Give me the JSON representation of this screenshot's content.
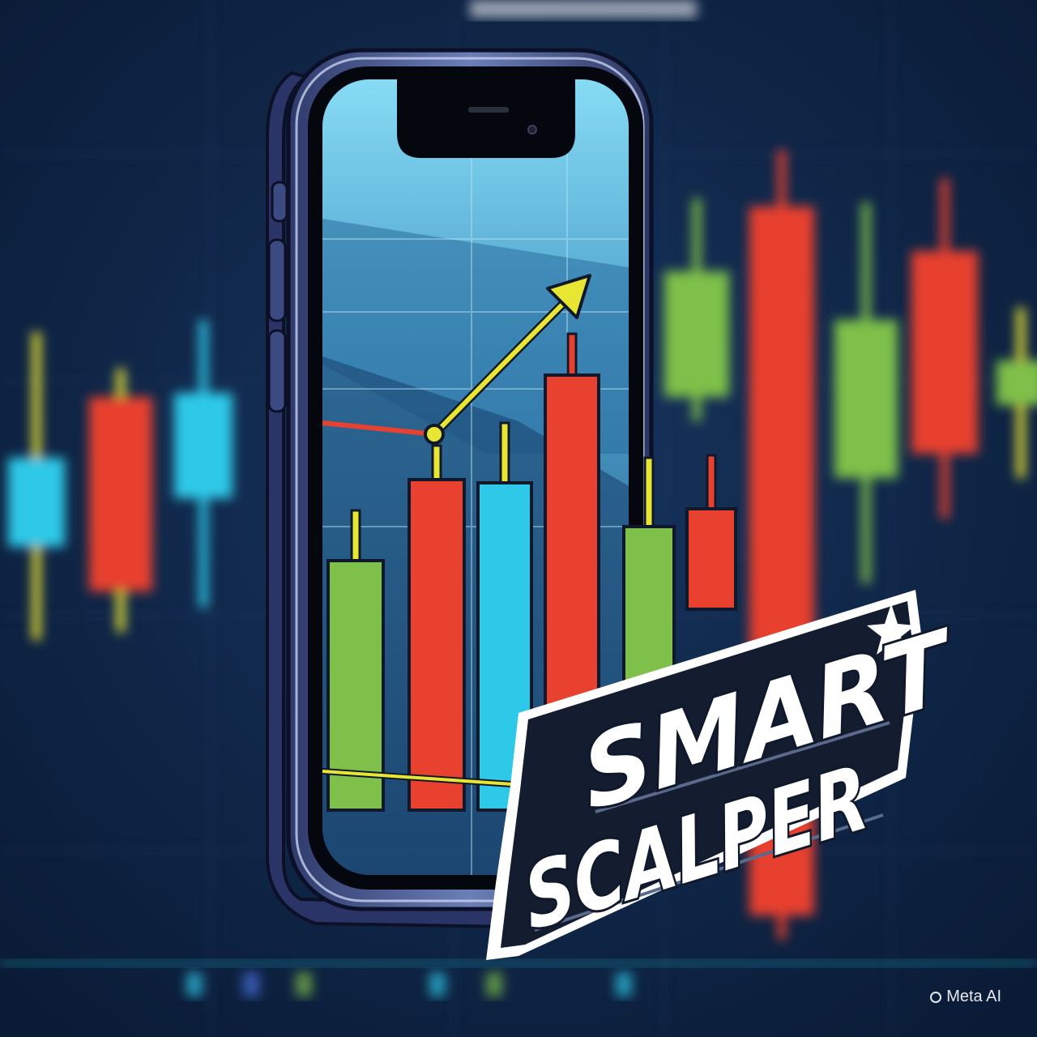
{
  "logo": {
    "line1": "SMART",
    "line2": "SCALPER"
  },
  "watermark": {
    "icon": "meta-ai-ring-icon",
    "text": "Meta AI"
  },
  "colors": {
    "background": "#0e2445",
    "green": "#7ec04a",
    "red": "#e8412f",
    "cyan": "#2ec9e8",
    "yellow": "#e9e533",
    "screen_top": "#7fd3ef",
    "screen_bottom": "#1f4d78",
    "phone_frame": "#4a5a8f",
    "logo_plate": "#141c30"
  },
  "background_candles": [
    {
      "color": "cyan"
    },
    {
      "color": "red"
    },
    {
      "color": "cyan"
    },
    {
      "color": "green"
    },
    {
      "color": "red"
    },
    {
      "color": "green"
    },
    {
      "color": "red"
    },
    {
      "color": "green"
    }
  ],
  "screen_candles": [
    {
      "color": "green"
    },
    {
      "color": "red"
    },
    {
      "color": "cyan"
    },
    {
      "color": "red"
    },
    {
      "color": "green"
    },
    {
      "color": "red"
    }
  ]
}
